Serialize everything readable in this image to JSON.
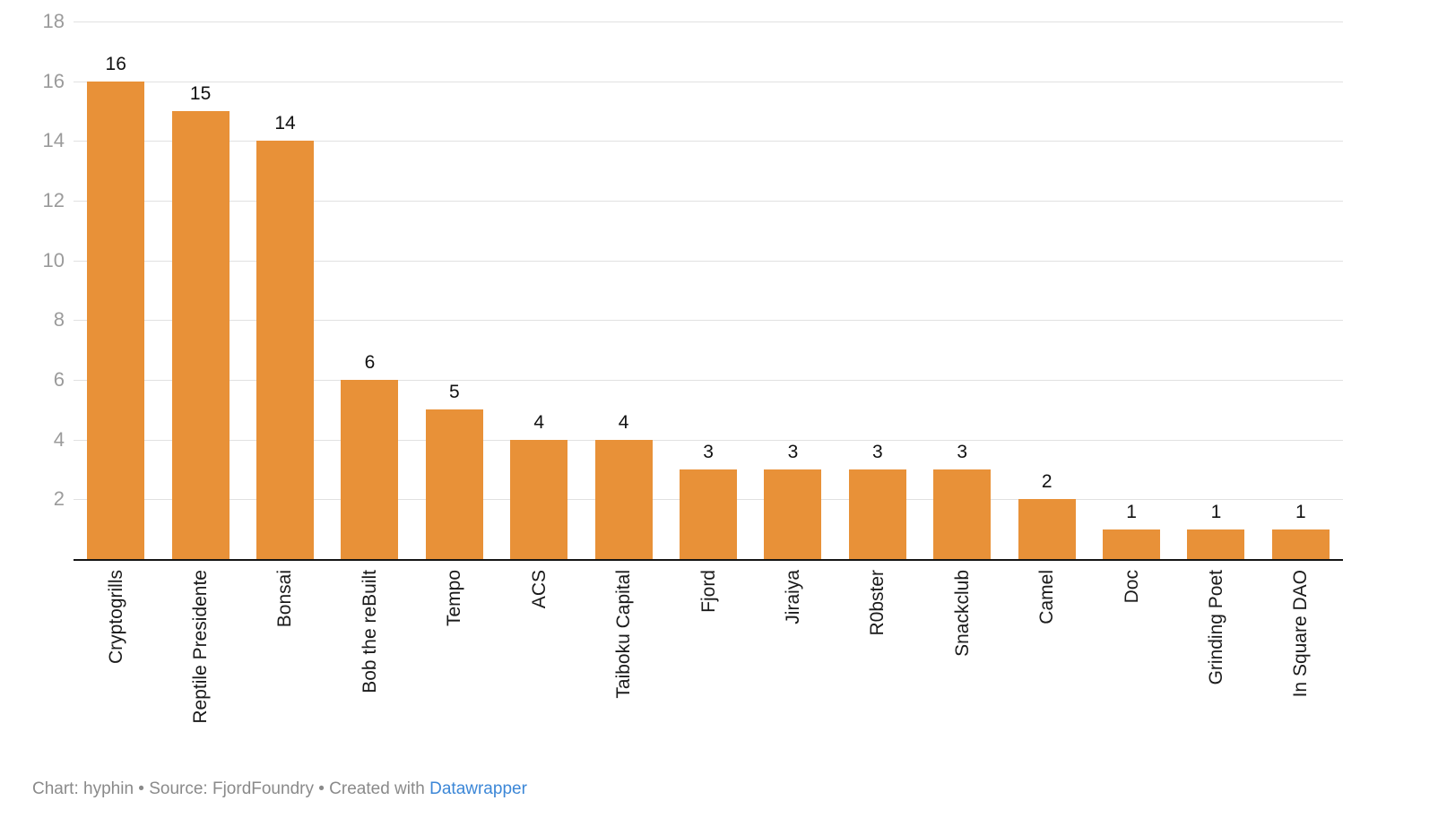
{
  "chart_data": {
    "type": "bar",
    "categories": [
      "Cryptogrills",
      "Reptile Presidente",
      "Bonsai",
      "Bob the reBuilt",
      "Tempo",
      "ACS",
      "Taiboku Capital",
      "Fjord",
      "Jiraiya",
      "R0bster",
      "Snackclub",
      "Camel",
      "Doc",
      "Grinding Poet",
      "In Square DAO"
    ],
    "values": [
      16,
      15,
      14,
      6,
      5,
      4,
      4,
      3,
      3,
      3,
      3,
      2,
      1,
      1,
      1
    ],
    "title": "",
    "xlabel": "",
    "ylabel": "",
    "yticks": [
      2,
      4,
      6,
      8,
      10,
      12,
      14,
      16,
      18
    ],
    "ylim": [
      0,
      18
    ],
    "grid": true,
    "legend_position": "none",
    "bar_color": "#E89138",
    "value_labels_shown": true,
    "category_label_rotation_deg": -90
  },
  "footer": {
    "prefix": "Chart: hyphin • Source: FjordFoundry • Created with ",
    "link_label": "Datawrapper"
  },
  "colors": {
    "bar": "#E89138",
    "gridline": "#E1E1E1",
    "axis_line": "#151515",
    "tick_label": "#9B9B9B",
    "value_label": "#111111",
    "category_label": "#1A1A1A",
    "footer_text": "#8A8A8A",
    "footer_link": "#3C87D7",
    "background": "#FFFFFF"
  }
}
